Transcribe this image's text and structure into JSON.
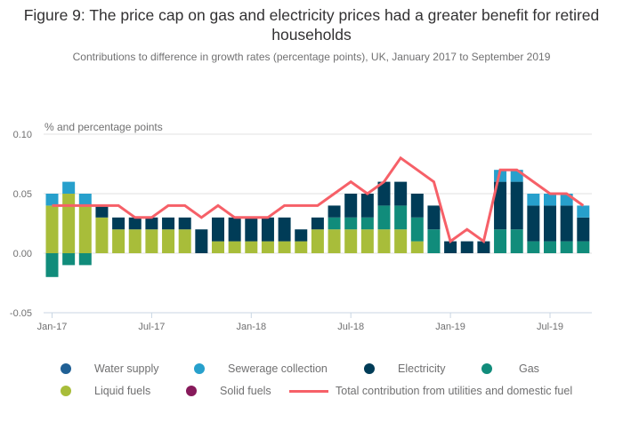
{
  "chart_data": {
    "type": "bar",
    "stacked": true,
    "title": "Figure 9: The price cap on gas and electricity prices had a greater benefit for retired households",
    "subtitle": "Contributions to difference in growth rates (percentage points), UK, January 2017 to September 2019",
    "ylabel": "% and percentage points",
    "xlabel": "",
    "ylim": [
      -0.05,
      0.1
    ],
    "yticks": [
      -0.05,
      0.0,
      0.05,
      0.1
    ],
    "ytick_labels": [
      "-0.05",
      "0.00",
      "0.05",
      "0.10"
    ],
    "grid": true,
    "legend_position": "bottom",
    "categories": [
      "Jan-17",
      "Feb-17",
      "Mar-17",
      "Apr-17",
      "May-17",
      "Jun-17",
      "Jul-17",
      "Aug-17",
      "Sep-17",
      "Oct-17",
      "Nov-17",
      "Dec-17",
      "Jan-18",
      "Feb-18",
      "Mar-18",
      "Apr-18",
      "May-18",
      "Jun-18",
      "Jul-18",
      "Aug-18",
      "Sep-18",
      "Oct-18",
      "Nov-18",
      "Dec-18",
      "Jan-19",
      "Feb-19",
      "Mar-19",
      "Apr-19",
      "May-19",
      "Jun-19",
      "Jul-19",
      "Aug-19",
      "Sep-19"
    ],
    "xtick_labels": [
      {
        "index": 0,
        "label": "Jan-17"
      },
      {
        "index": 6,
        "label": "Jul-17"
      },
      {
        "index": 12,
        "label": "Jan-18"
      },
      {
        "index": 18,
        "label": "Jul-18"
      },
      {
        "index": 24,
        "label": "Jan-19"
      },
      {
        "index": 30,
        "label": "Jul-19"
      }
    ],
    "series": [
      {
        "name": "Water supply",
        "type": "bar",
        "color": "#206095",
        "values": [
          0,
          0,
          0,
          0,
          0,
          0,
          0,
          0,
          0,
          0,
          0,
          0,
          0,
          0,
          0,
          0,
          0,
          0,
          0,
          0,
          0,
          0,
          0,
          0,
          0,
          0,
          0,
          0,
          0,
          0,
          0,
          0,
          0
        ]
      },
      {
        "name": "Sewerage collection",
        "type": "bar",
        "color": "#27a0cc",
        "values": [
          0.01,
          0.01,
          0.01,
          0,
          0,
          0,
          0,
          0,
          0,
          0,
          0,
          0,
          0,
          0,
          0,
          0,
          0,
          0,
          0,
          0,
          0,
          0,
          0,
          0,
          0,
          0,
          0,
          0.01,
          0.01,
          0.01,
          0.01,
          0.01,
          0.01
        ]
      },
      {
        "name": "Electricity",
        "type": "bar",
        "color": "#003c57",
        "values": [
          0,
          0,
          0,
          0.01,
          0.01,
          0.01,
          0.01,
          0.01,
          0.01,
          0.02,
          0.02,
          0.02,
          0.02,
          0.02,
          0.02,
          0.01,
          0.01,
          0.01,
          0.02,
          0.02,
          0.02,
          0.02,
          0.02,
          0.02,
          0.01,
          0.01,
          0.01,
          0.04,
          0.04,
          0.03,
          0.03,
          0.03,
          0.02
        ]
      },
      {
        "name": "Gas",
        "type": "bar",
        "color": "#118c7b",
        "values": [
          -0.02,
          -0.01,
          -0.01,
          0,
          0,
          0,
          0,
          0,
          0,
          0,
          0,
          0,
          0,
          0,
          0,
          0,
          0,
          0.01,
          0.01,
          0.01,
          0.02,
          0.02,
          0.02,
          0.02,
          0,
          0,
          0,
          0.02,
          0.02,
          0.01,
          0.01,
          0.01,
          0.01
        ]
      },
      {
        "name": "Liquid fuels",
        "type": "bar",
        "color": "#a8bd3a",
        "values": [
          0.04,
          0.05,
          0.04,
          0.03,
          0.02,
          0.02,
          0.02,
          0.02,
          0.02,
          0,
          0.01,
          0.01,
          0.01,
          0.01,
          0.01,
          0.01,
          0.02,
          0.02,
          0.02,
          0.02,
          0.02,
          0.02,
          0.01,
          0,
          0,
          0,
          0,
          0,
          0,
          0,
          0,
          0,
          0
        ]
      },
      {
        "name": "Solid fuels",
        "type": "bar",
        "color": "#871a5b",
        "values": [
          0,
          0,
          0,
          0,
          0,
          0,
          0,
          0,
          0,
          0,
          0,
          0,
          0,
          0,
          0,
          0,
          0,
          0,
          0,
          0,
          0,
          0,
          0,
          0,
          0,
          0,
          0,
          0,
          0,
          0,
          0,
          0,
          0
        ]
      },
      {
        "name": "Total contribution from utilities and domestic fuel",
        "type": "line",
        "color": "#f66068",
        "values": [
          0.04,
          0.04,
          0.04,
          0.04,
          0.04,
          0.03,
          0.03,
          0.04,
          0.04,
          0.03,
          0.04,
          0.03,
          0.03,
          0.03,
          0.04,
          0.04,
          0.04,
          0.05,
          0.06,
          0.05,
          0.06,
          0.08,
          0.07,
          0.06,
          0.01,
          0.02,
          0.01,
          0.07,
          0.07,
          0.06,
          0.05,
          0.05,
          0.04
        ]
      }
    ]
  },
  "legend": {
    "items": [
      {
        "label": "Water supply",
        "color": "#206095",
        "kind": "dot"
      },
      {
        "label": "Sewerage collection",
        "color": "#27a0cc",
        "kind": "dot"
      },
      {
        "label": "Electricity",
        "color": "#003c57",
        "kind": "dot"
      },
      {
        "label": "Gas",
        "color": "#118c7b",
        "kind": "dot"
      },
      {
        "label": "Liquid fuels",
        "color": "#a8bd3a",
        "kind": "dot"
      },
      {
        "label": "Solid fuels",
        "color": "#871a5b",
        "kind": "dot"
      },
      {
        "label": "Total contribution from utilities and domestic fuel",
        "color": "#f66068",
        "kind": "line"
      }
    ]
  }
}
